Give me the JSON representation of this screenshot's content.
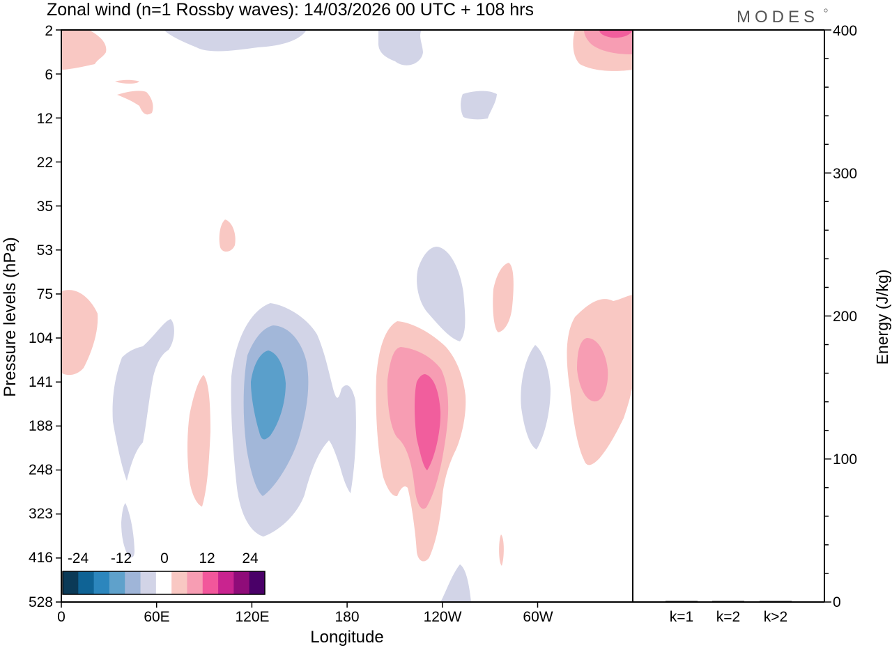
{
  "chart_data": [
    {
      "type": "heatmap",
      "title": "Zonal wind (n=1 Rossby waves):  14/03/2026  00 UTC  + 108 hrs",
      "logo": "MODES",
      "xlabel": "Longitude",
      "ylabel": "Pressure levels (hPa)",
      "x_ticks": [
        "0",
        "60E",
        "120E",
        "180",
        "120W",
        "60W"
      ],
      "y_ticks": [
        "2",
        "6",
        "12",
        "22",
        "35",
        "53",
        "75",
        "104",
        "141",
        "188",
        "248",
        "323",
        "416",
        "528"
      ],
      "colorbar": {
        "tick_labels": [
          "-24",
          "-12",
          "0",
          "12",
          "24"
        ],
        "levels": [
          -30,
          -26,
          -22,
          -18,
          -14,
          -10,
          -6,
          6,
          10,
          14,
          18,
          22,
          26,
          30
        ],
        "colors": [
          "#0b3a57",
          "#0f6395",
          "#2c86bd",
          "#5fa1cb",
          "#9fb5d8",
          "#d2d4e7",
          "#ffffff",
          "#f9c8c3",
          "#f79db3",
          "#f2579b",
          "#c9248f",
          "#8f0c79",
          "#4a0068"
        ]
      },
      "fill_colors": {
        "neg1": "#d2d4e7",
        "neg2": "#a2b7d9",
        "neg3": "#5a9fcb",
        "pos1": "#f9c8c3",
        "pos2": "#f79db3",
        "pos3": "#f15e9d"
      },
      "note": "Filled contour field; regions reproduced as shapes"
    },
    {
      "type": "bar",
      "ylabel": "Energy (J/kg)",
      "ylim": [
        0,
        400
      ],
      "y_ticks": [
        "0",
        "100",
        "200",
        "300",
        "400"
      ],
      "categories": [
        "k=1",
        "k=2",
        "k>2"
      ],
      "values": [
        0,
        0.3,
        0.5
      ]
    }
  ]
}
